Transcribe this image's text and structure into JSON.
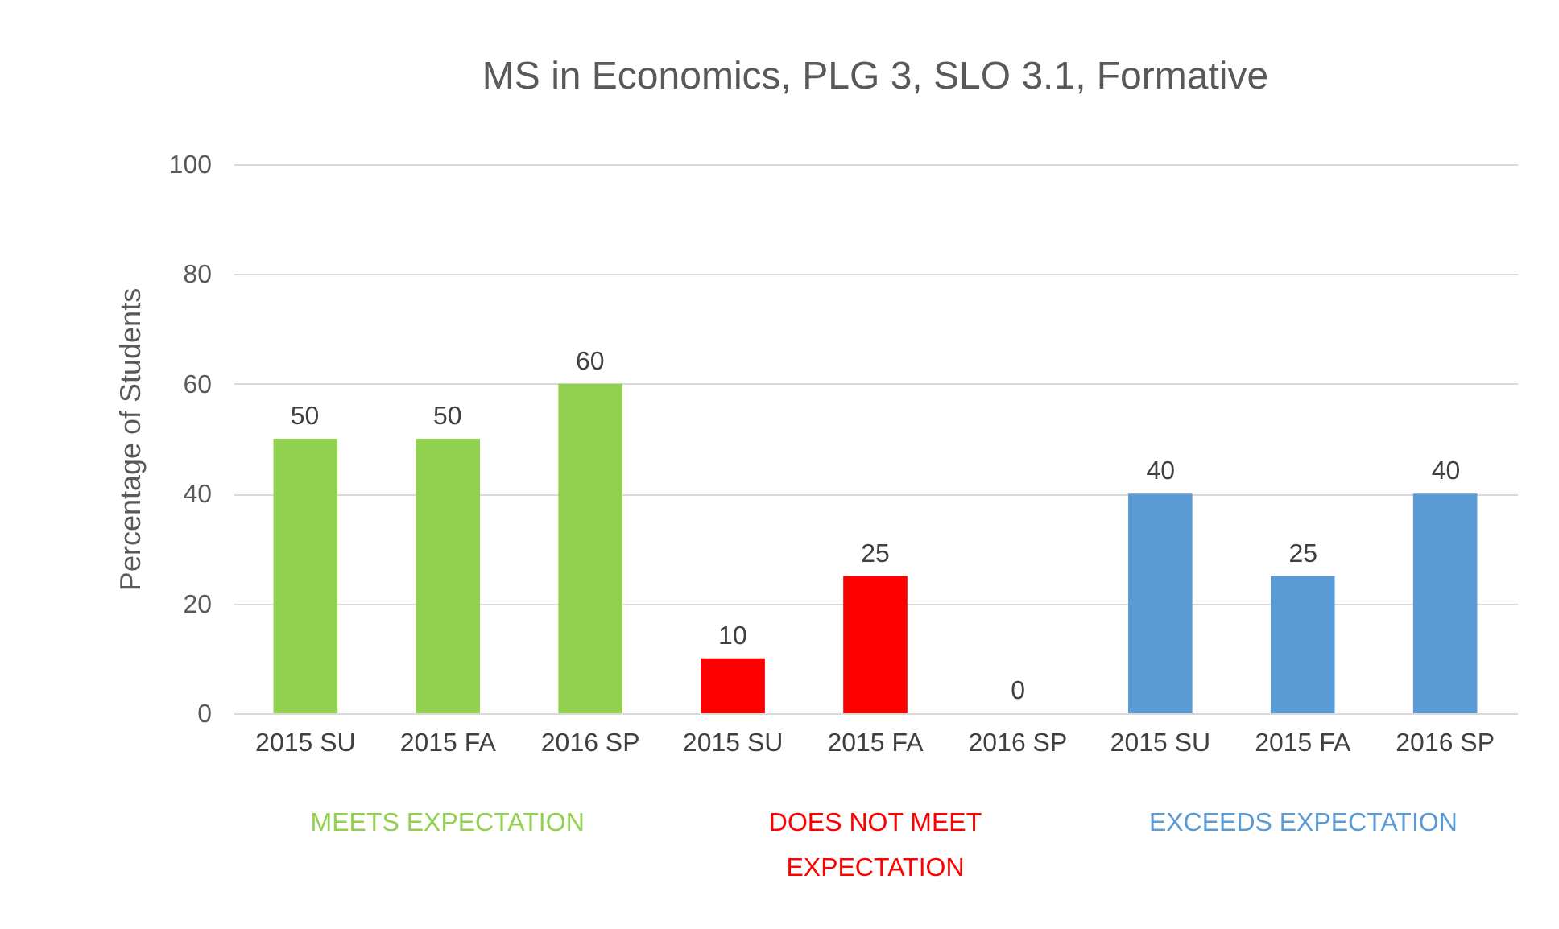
{
  "chart_data": {
    "type": "bar",
    "title": "MS in Economics, PLG 3, SLO 3.1, Formative",
    "ylabel": "Percentage of Students",
    "categories": [
      "2015 SU",
      "2015 FA",
      "2016 SP",
      "2015 SU",
      "2015 FA",
      "2016 SP",
      "2015 SU",
      "2015 FA",
      "2016 SP"
    ],
    "series": [
      {
        "name": "MEETS EXPECTATION",
        "color": "#92d050",
        "values": [
          50,
          50,
          60,
          null,
          null,
          null,
          null,
          null,
          null
        ]
      },
      {
        "name": "DOES NOT MEET EXPECTATION",
        "color": "#ff0000",
        "values": [
          null,
          null,
          null,
          10,
          25,
          0,
          null,
          null,
          null
        ]
      },
      {
        "name": "EXCEEDS EXPECTATION",
        "color": "#5b9bd5",
        "values": [
          null,
          null,
          null,
          null,
          null,
          null,
          40,
          25,
          40
        ]
      }
    ],
    "ylim": [
      0,
      100
    ],
    "yticks": [
      0,
      20,
      40,
      60,
      80,
      100
    ],
    "grid": "y",
    "data_labels": true,
    "legend": false
  }
}
